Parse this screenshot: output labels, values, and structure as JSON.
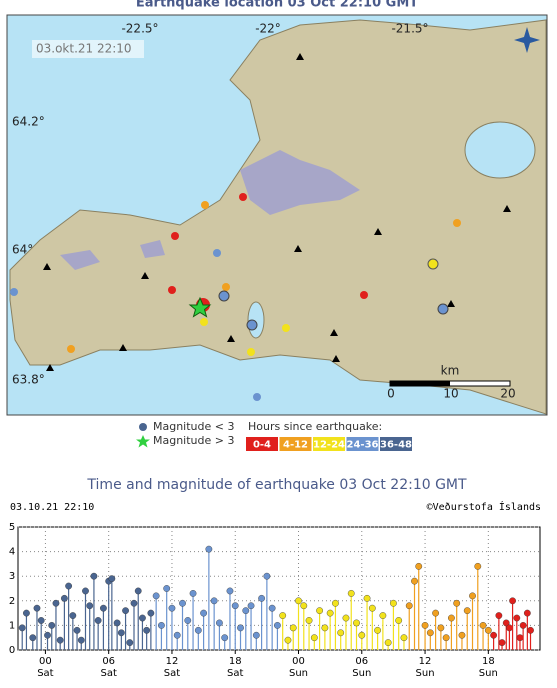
{
  "map": {
    "title": "Earthquake location   03 Oct 22:10 GMT",
    "lon_labels": [
      "-22.5°",
      "-22°",
      "-21.5°"
    ],
    "lat_labels": [
      "64.2°",
      "64°",
      "63.8°"
    ],
    "timestamp": "03.okt.21  22:10",
    "scale_unit": "km",
    "scale_ticks": [
      "0",
      "10",
      "20"
    ],
    "magnitude_legend": [
      "Magnitude < 3",
      "Magnitude > 3"
    ],
    "legend_title": "Hours since earthquake:"
  },
  "chart_data": {
    "type": "stem",
    "title": "Time and magnitude of earthquake   03 Oct 22:10 GMT",
    "date_label": "03.10.21 22:10",
    "credit": "©Veðurstofa Íslands",
    "xlim": [
      -2.6,
      46.9
    ],
    "xticks": [
      {
        "value": 0,
        "label": "00"
      },
      {
        "value": 6,
        "label": "06"
      },
      12,
      18,
      {
        "value": 24,
        "label": "00"
      },
      {
        "value": 30,
        "label": "06"
      },
      {
        "value": 36,
        "label": "12"
      },
      {
        "value": 42,
        "label": "18"
      }
    ],
    "xtick_days": [
      "Sat",
      "Sat",
      "Sat",
      "Sat",
      "Sun",
      "Sun",
      "Sun",
      "Sun"
    ],
    "ylim": [
      0,
      5
    ],
    "yticks": [
      0,
      1,
      2,
      3,
      4,
      5
    ],
    "grid": true,
    "series": [
      {
        "name": "0-4",
        "color": "#e0201c",
        "x": [
          42.5,
          43,
          43.3,
          43.7,
          44,
          44.3,
          44.7,
          45,
          45.3,
          45.7,
          46
        ],
        "values": [
          0.6,
          1.4,
          0.3,
          1.1,
          0.9,
          2.0,
          1.3,
          0.5,
          1.0,
          1.5,
          0.8
        ]
      },
      {
        "name": "4-12",
        "color": "#f0a020",
        "x": [
          34.5,
          35,
          35.4,
          36,
          36.5,
          37,
          37.5,
          38,
          38.5,
          39,
          39.5,
          40,
          40.5,
          41,
          41.5,
          42
        ],
        "values": [
          1.8,
          2.8,
          3.4,
          1.0,
          0.7,
          1.5,
          0.9,
          0.5,
          1.3,
          1.9,
          0.6,
          1.6,
          2.2,
          3.4,
          1.0,
          0.8
        ]
      },
      {
        "name": "12-24",
        "color": "#f2e21c",
        "x": [
          22.5,
          23,
          23.5,
          24,
          24.5,
          25,
          25.5,
          26,
          26.5,
          27,
          27.5,
          28,
          28.5,
          29,
          29.5,
          30,
          30.5,
          31,
          31.5,
          32,
          32.5,
          33,
          33.5,
          34
        ],
        "values": [
          1.4,
          0.4,
          0.9,
          2.0,
          1.8,
          1.2,
          0.5,
          1.6,
          0.9,
          1.5,
          1.9,
          0.7,
          1.3,
          2.3,
          1.1,
          0.6,
          2.1,
          1.7,
          0.8,
          1.4,
          0.3,
          1.9,
          1.2,
          0.5
        ]
      },
      {
        "name": "24-36",
        "color": "#6b93cf",
        "x": [
          10.5,
          11,
          11.5,
          12,
          12.5,
          13,
          13.5,
          14,
          14.5,
          15,
          15.5,
          16,
          16.5,
          17,
          17.5,
          18,
          18.5,
          19,
          19.5,
          20,
          20.5,
          21,
          21.5,
          22
        ],
        "values": [
          2.2,
          1.0,
          2.5,
          1.7,
          0.6,
          1.9,
          1.2,
          2.3,
          0.8,
          1.5,
          4.1,
          2.0,
          1.1,
          0.5,
          2.4,
          1.8,
          0.9,
          1.6,
          1.8,
          0.6,
          2.1,
          3.0,
          1.7,
          1.0
        ]
      },
      {
        "name": "36-48",
        "color": "#4a6590",
        "x": [
          -2.2,
          -1.8,
          -1.2,
          -0.8,
          -0.4,
          0.2,
          0.6,
          1.0,
          1.4,
          1.8,
          2.2,
          2.6,
          3.0,
          3.4,
          3.8,
          4.2,
          4.6,
          5.0,
          5.5,
          6.0,
          6.3,
          6.8,
          7.2,
          7.6,
          8.0,
          8.4,
          8.8,
          9.2,
          9.6,
          10.0
        ],
        "values": [
          0.9,
          1.5,
          0.5,
          1.7,
          1.2,
          0.6,
          1.0,
          1.9,
          0.4,
          2.1,
          2.6,
          1.4,
          0.8,
          0.4,
          2.4,
          1.8,
          3.0,
          1.2,
          1.7,
          2.8,
          2.9,
          1.1,
          0.7,
          1.6,
          0.3,
          1.9,
          2.4,
          1.3,
          0.8,
          1.5
        ]
      }
    ]
  }
}
